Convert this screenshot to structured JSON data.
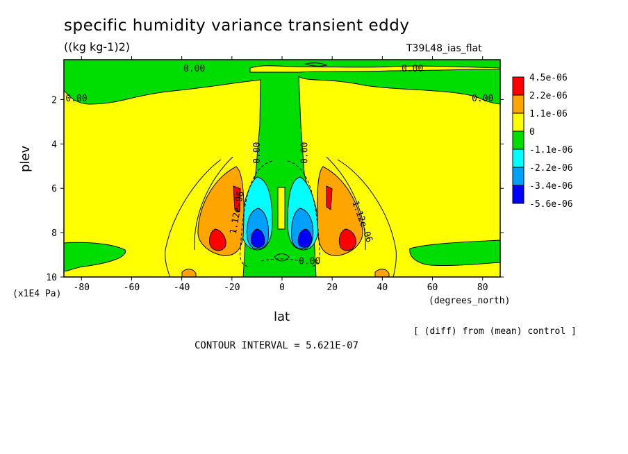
{
  "chart_data": {
    "type": "heatmap",
    "title": "specific humidity variance transient eddy",
    "subtitle": "((kg kg-1)2)",
    "run_id": "T39L48_ias_flat",
    "xlabel": "lat",
    "x_units": "(degrees_north)",
    "ylabel": "plev",
    "y_units": "(x1E4 Pa)",
    "xlim": [
      -87,
      87
    ],
    "ylim": [
      10,
      0.2
    ],
    "x_ticks": [
      -80,
      -60,
      -40,
      -20,
      0,
      20,
      40,
      60,
      80
    ],
    "y_ticks": [
      2,
      4,
      6,
      8,
      10
    ],
    "contour_labels": [
      {
        "text": "0.00",
        "lat": -35,
        "plev": 0.6
      },
      {
        "text": "0.00",
        "lat": 52,
        "plev": 0.6
      },
      {
        "text": "0.00",
        "lat": -82,
        "plev": 1.95
      },
      {
        "text": "0.00",
        "lat": 80,
        "plev": 1.95
      },
      {
        "text": "0.00",
        "lat": -10,
        "plev": 4.4
      },
      {
        "text": "0.00",
        "lat": 9,
        "plev": 4.4
      },
      {
        "text": "0.00",
        "lat": 11,
        "plev": 9.3
      },
      {
        "text": "1.12e-06",
        "lat": -18,
        "plev": 7.1
      },
      {
        "text": "1.12e-06",
        "lat": 32,
        "plev": 7.5
      }
    ],
    "legend": {
      "placement": "right",
      "levels": [
        "4.5e-06",
        "2.2e-06",
        "1.1e-06",
        "0",
        "-1.1e-06",
        "-2.2e-06",
        "-3.4e-06",
        "-5.6e-06"
      ],
      "colors": [
        "#ff0000",
        "#ffa500",
        "#ffff00",
        "#00dd00",
        "#00ffff",
        "#00a0ff",
        "#0000ff"
      ]
    },
    "contour_interval_text": "CONTOUR INTERVAL = 5.621E-07",
    "diff_note": "[ (diff) from (mean) control ]"
  }
}
